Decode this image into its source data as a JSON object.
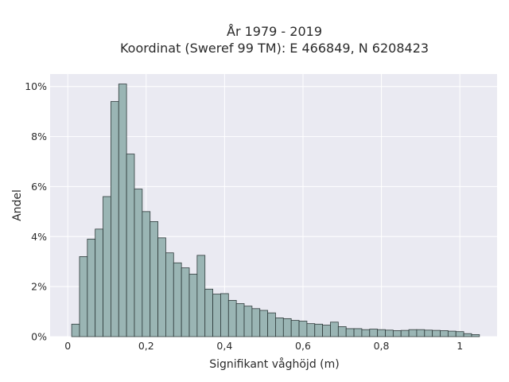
{
  "colors": {
    "plot_background": "#eaeaf2",
    "grid": "#ffffff",
    "bar_fill": "#9ab5b4",
    "bar_edge": "#2f3b3b",
    "text": "#2a2a2a"
  },
  "chart_data": {
    "type": "bar",
    "title": [
      "År 1979 - 2019",
      "Koordinat (Sweref 99 TM): E 466849, N 6208423"
    ],
    "xlabel": "Signifikant våghöjd (m)",
    "ylabel": "Andel",
    "xlim": [
      -0.045,
      1.095
    ],
    "ylim": [
      0,
      10.5
    ],
    "x_ticks": [
      {
        "value": 0,
        "label": "0"
      },
      {
        "value": 0.2,
        "label": "0,2"
      },
      {
        "value": 0.4,
        "label": "0,4"
      },
      {
        "value": 0.6,
        "label": "0,6"
      },
      {
        "value": 0.8,
        "label": "0,8"
      },
      {
        "value": 1,
        "label": "1"
      }
    ],
    "y_ticks": [
      {
        "value": 0,
        "label": "0%"
      },
      {
        "value": 2,
        "label": "2%"
      },
      {
        "value": 4,
        "label": "4%"
      },
      {
        "value": 6,
        "label": "6%"
      },
      {
        "value": 8,
        "label": "8%"
      },
      {
        "value": 10,
        "label": "10%"
      }
    ],
    "grid": true,
    "bin_width": 0.02,
    "bin_starts": [
      0.01,
      0.03,
      0.05,
      0.07,
      0.09,
      0.11,
      0.13,
      0.15,
      0.17,
      0.19,
      0.21,
      0.23,
      0.25,
      0.27,
      0.29,
      0.31,
      0.33,
      0.35,
      0.37,
      0.39,
      0.41,
      0.43,
      0.45,
      0.47,
      0.49,
      0.51,
      0.53,
      0.55,
      0.57,
      0.59,
      0.61,
      0.63,
      0.65,
      0.67,
      0.69,
      0.71,
      0.73,
      0.75,
      0.77,
      0.79,
      0.81,
      0.83,
      0.85,
      0.87,
      0.89,
      0.91,
      0.93,
      0.95,
      0.97,
      0.99,
      1.01,
      1.03
    ],
    "values": [
      0.5,
      3.2,
      3.9,
      4.3,
      5.6,
      9.4,
      10.1,
      7.3,
      5.9,
      5.0,
      4.6,
      3.95,
      3.35,
      2.95,
      2.75,
      2.5,
      3.25,
      1.9,
      1.7,
      1.72,
      1.45,
      1.32,
      1.22,
      1.12,
      1.05,
      0.95,
      0.75,
      0.72,
      0.65,
      0.62,
      0.52,
      0.5,
      0.46,
      0.58,
      0.4,
      0.32,
      0.32,
      0.28,
      0.3,
      0.28,
      0.26,
      0.24,
      0.25,
      0.28,
      0.28,
      0.26,
      0.25,
      0.24,
      0.22,
      0.2,
      0.12,
      0.08
    ]
  }
}
